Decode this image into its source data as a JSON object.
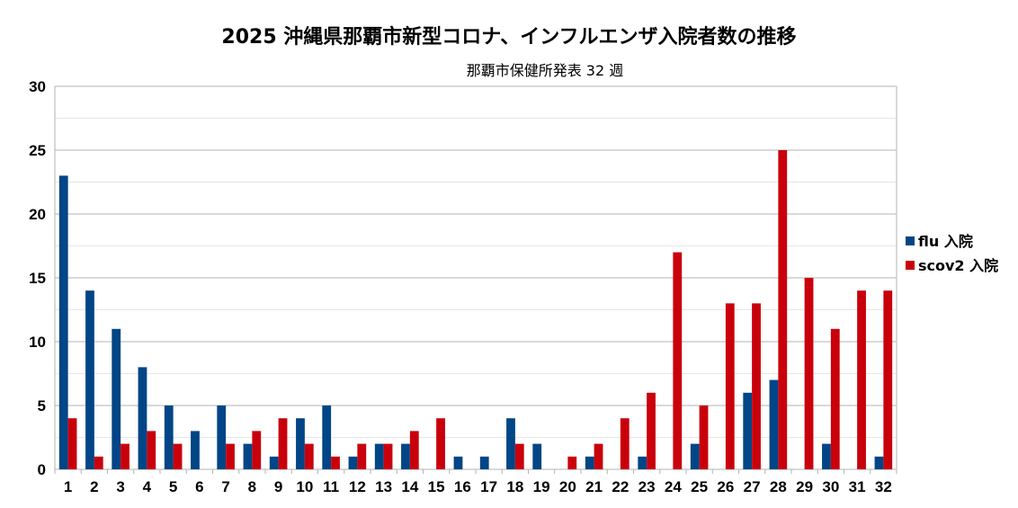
{
  "chart_data": {
    "type": "bar",
    "title": "2025 沖縄県那覇市新型コロナ、インフルエンザ入院者数の推移",
    "subtitle": "那覇市保健所発表 32 週",
    "xlabel": "",
    "ylabel": "",
    "ylim": [
      0,
      30
    ],
    "yticks": [
      0,
      5,
      10,
      15,
      20,
      25,
      30
    ],
    "grid": true,
    "legend_position": "right",
    "categories": [
      "1",
      "2",
      "3",
      "4",
      "5",
      "6",
      "7",
      "8",
      "9",
      "10",
      "11",
      "12",
      "13",
      "14",
      "15",
      "16",
      "17",
      "18",
      "19",
      "20",
      "21",
      "22",
      "23",
      "24",
      "25",
      "26",
      "27",
      "28",
      "29",
      "30",
      "31",
      "32"
    ],
    "series": [
      {
        "name": "flu 入院",
        "color": "#004586",
        "values": [
          23,
          14,
          11,
          8,
          5,
          3,
          5,
          2,
          1,
          4,
          5,
          1,
          2,
          2,
          0,
          1,
          1,
          4,
          2,
          0,
          1,
          0,
          1,
          0,
          2,
          0,
          6,
          7,
          0,
          2,
          0,
          1
        ]
      },
      {
        "name": "scov2 入院",
        "color": "#c9000b",
        "values": [
          4,
          1,
          2,
          3,
          2,
          0,
          2,
          3,
          4,
          2,
          1,
          2,
          2,
          3,
          4,
          0,
          0,
          2,
          0,
          1,
          2,
          4,
          6,
          17,
          5,
          13,
          13,
          25,
          15,
          11,
          14,
          14
        ]
      }
    ]
  }
}
